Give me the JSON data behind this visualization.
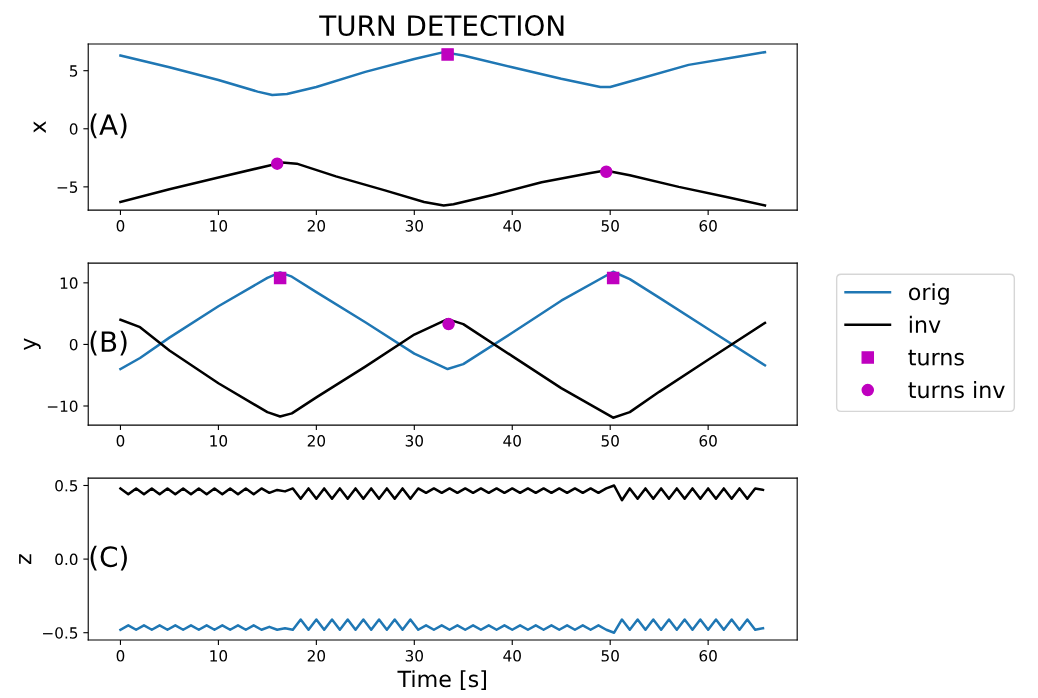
{
  "chart_data": [
    {
      "type": "line",
      "title": "TURN DETECTION",
      "ylabel": "x",
      "annotations": [
        "(A)"
      ],
      "xlim": [
        -3.29,
        69.09
      ],
      "xticks": [
        0,
        10,
        20,
        30,
        40,
        50,
        60
      ],
      "ylim": [
        -7.0,
        7.3
      ],
      "yticks": [
        -5,
        0,
        5
      ],
      "grid": false,
      "legend": false,
      "series": [
        {
          "color": "#1f77b4",
          "x": [
            0,
            5,
            10,
            14,
            15.5,
            17,
            20,
            25,
            30,
            33,
            35,
            40,
            45,
            49,
            50,
            53,
            58,
            63,
            65.8
          ],
          "values": [
            6.3,
            5.3,
            4.2,
            3.2,
            2.9,
            3.0,
            3.6,
            4.9,
            6.0,
            6.6,
            6.3,
            5.3,
            4.3,
            3.6,
            3.6,
            4.3,
            5.5,
            6.2,
            6.6
          ]
        },
        {
          "color": "#000000",
          "x": [
            0,
            5,
            10,
            15,
            16.5,
            18,
            22,
            27,
            31,
            33,
            34,
            38,
            43,
            48,
            49.5,
            52,
            57,
            62,
            65.8
          ],
          "values": [
            -6.3,
            -5.2,
            -4.2,
            -3.2,
            -2.9,
            -3.0,
            -4.1,
            -5.3,
            -6.3,
            -6.6,
            -6.5,
            -5.7,
            -4.6,
            -3.8,
            -3.6,
            -4.0,
            -5.0,
            -5.9,
            -6.6
          ]
        },
        {
          "type": "scatter",
          "marker": "square",
          "color": "#bf00bf",
          "x": [
            33.4
          ],
          "values": [
            6.4
          ]
        },
        {
          "type": "scatter",
          "marker": "circle",
          "color": "#bf00bf",
          "x": [
            16,
            49.6
          ],
          "values": [
            -3.0,
            -3.7
          ]
        }
      ]
    },
    {
      "type": "line",
      "ylabel": "y",
      "annotations": [
        "(B)"
      ],
      "xlim": [
        -3.29,
        69.09
      ],
      "xticks": [
        0,
        10,
        20,
        30,
        40,
        50,
        60
      ],
      "ylim": [
        -13.1,
        13.2
      ],
      "yticks": [
        -10,
        0,
        10
      ],
      "grid": false,
      "legend": "right",
      "series": [
        {
          "name": "orig",
          "color": "#1f77b4",
          "x": [
            0,
            2,
            5,
            10,
            15,
            16.3,
            17.5,
            20,
            25,
            30,
            33.4,
            35,
            40,
            45,
            50.3,
            52,
            55,
            60,
            65.8
          ],
          "values": [
            -4,
            -2.2,
            1.1,
            6.2,
            10.8,
            11.7,
            11.0,
            8.5,
            3.6,
            -1.5,
            -4.0,
            -3.2,
            1.9,
            7.1,
            11.8,
            10.6,
            7.6,
            2.5,
            -3.4
          ]
        },
        {
          "name": "inv",
          "color": "#000000",
          "x": [
            0,
            2,
            5,
            10,
            15,
            16.3,
            17.5,
            20,
            25,
            30,
            33.4,
            35,
            40,
            45,
            50.3,
            52,
            55,
            60,
            65.8
          ],
          "values": [
            4,
            2.8,
            -1.0,
            -6.3,
            -11.0,
            -11.7,
            -11.2,
            -8.6,
            -3.6,
            1.6,
            4.1,
            3.3,
            -1.9,
            -7.1,
            -11.9,
            -11.0,
            -7.7,
            -2.5,
            3.5
          ]
        },
        {
          "type": "scatter",
          "name": "turns",
          "marker": "square",
          "color": "#bf00bf",
          "x": [
            16.3,
            50.3
          ],
          "values": [
            10.8,
            10.8
          ]
        },
        {
          "type": "scatter",
          "name": "turns inv",
          "marker": "circle",
          "color": "#bf00bf",
          "x": [
            33.5
          ],
          "values": [
            3.3
          ]
        }
      ]
    },
    {
      "type": "line",
      "ylabel": "z",
      "xlabel": "Time [s]",
      "annotations": [
        "(C)"
      ],
      "xlim": [
        -3.29,
        69.09
      ],
      "xticks": [
        0,
        10,
        20,
        30,
        40,
        50,
        60
      ],
      "ylim": [
        -0.55,
        0.55
      ],
      "yticks": [
        {
          "value": -0.5,
          "label": "−0.5"
        },
        {
          "value": 0,
          "label": "0.0"
        },
        {
          "value": 0.5,
          "label": "0.5"
        }
      ],
      "grid": false,
      "legend": false,
      "series": [
        {
          "color": "#000000",
          "x": [
            0,
            0.8,
            1.6,
            2.4,
            3.2,
            4,
            4.8,
            5.6,
            6.4,
            7.2,
            8,
            8.8,
            9.6,
            10.4,
            11.2,
            12,
            12.8,
            13.6,
            14.4,
            15.2,
            16,
            16.8,
            17.6,
            18.4,
            19.2,
            20,
            20.8,
            21.6,
            22.4,
            23.2,
            24,
            24.8,
            25.6,
            26.4,
            27.2,
            28,
            28.8,
            29.6,
            30.4,
            31.2,
            32,
            32.8,
            33.6,
            34.4,
            35.2,
            36,
            36.8,
            37.6,
            38.4,
            39.2,
            40,
            40.8,
            41.6,
            42.4,
            43.2,
            44,
            44.8,
            45.6,
            46.4,
            47.2,
            48,
            48.8,
            49.6,
            50.4,
            51.2,
            52,
            52.8,
            53.6,
            54.4,
            55.2,
            56,
            56.8,
            57.6,
            58.4,
            59.2,
            60,
            60.8,
            61.6,
            62.4,
            63.2,
            64,
            64.8,
            65.6
          ],
          "values": [
            0.48,
            0.44,
            0.48,
            0.44,
            0.48,
            0.44,
            0.48,
            0.44,
            0.48,
            0.44,
            0.48,
            0.44,
            0.48,
            0.44,
            0.48,
            0.44,
            0.48,
            0.44,
            0.48,
            0.45,
            0.47,
            0.46,
            0.48,
            0.41,
            0.48,
            0.41,
            0.48,
            0.41,
            0.48,
            0.41,
            0.48,
            0.41,
            0.48,
            0.41,
            0.48,
            0.41,
            0.48,
            0.41,
            0.48,
            0.45,
            0.48,
            0.45,
            0.48,
            0.45,
            0.48,
            0.45,
            0.48,
            0.45,
            0.48,
            0.45,
            0.48,
            0.45,
            0.48,
            0.45,
            0.48,
            0.45,
            0.48,
            0.45,
            0.48,
            0.45,
            0.48,
            0.45,
            0.48,
            0.5,
            0.4,
            0.48,
            0.41,
            0.48,
            0.41,
            0.48,
            0.41,
            0.48,
            0.41,
            0.48,
            0.41,
            0.48,
            0.41,
            0.48,
            0.41,
            0.48,
            0.41,
            0.48,
            0.47
          ]
        },
        {
          "color": "#1f77b4",
          "x": [
            0,
            0.8,
            1.6,
            2.4,
            3.2,
            4,
            4.8,
            5.6,
            6.4,
            7.2,
            8,
            8.8,
            9.6,
            10.4,
            11.2,
            12,
            12.8,
            13.6,
            14.4,
            15.2,
            16,
            16.8,
            17.6,
            18.4,
            19.2,
            20,
            20.8,
            21.6,
            22.4,
            23.2,
            24,
            24.8,
            25.6,
            26.4,
            27.2,
            28,
            28.8,
            29.6,
            30.4,
            31.2,
            32,
            32.8,
            33.6,
            34.4,
            35.2,
            36,
            36.8,
            37.6,
            38.4,
            39.2,
            40,
            40.8,
            41.6,
            42.4,
            43.2,
            44,
            44.8,
            45.6,
            46.4,
            47.2,
            48,
            48.8,
            49.6,
            50.4,
            51.2,
            52,
            52.8,
            53.6,
            54.4,
            55.2,
            56,
            56.8,
            57.6,
            58.4,
            59.2,
            60,
            60.8,
            61.6,
            62.4,
            63.2,
            64,
            64.8,
            65.6
          ],
          "values": [
            -0.48,
            -0.45,
            -0.48,
            -0.45,
            -0.48,
            -0.45,
            -0.48,
            -0.45,
            -0.48,
            -0.45,
            -0.48,
            -0.45,
            -0.48,
            -0.45,
            -0.48,
            -0.45,
            -0.48,
            -0.45,
            -0.48,
            -0.46,
            -0.48,
            -0.47,
            -0.48,
            -0.41,
            -0.48,
            -0.41,
            -0.48,
            -0.41,
            -0.48,
            -0.41,
            -0.48,
            -0.41,
            -0.48,
            -0.41,
            -0.48,
            -0.41,
            -0.48,
            -0.41,
            -0.48,
            -0.45,
            -0.48,
            -0.45,
            -0.48,
            -0.45,
            -0.48,
            -0.45,
            -0.48,
            -0.45,
            -0.48,
            -0.45,
            -0.48,
            -0.45,
            -0.48,
            -0.45,
            -0.48,
            -0.45,
            -0.48,
            -0.45,
            -0.48,
            -0.45,
            -0.48,
            -0.45,
            -0.48,
            -0.5,
            -0.41,
            -0.48,
            -0.41,
            -0.48,
            -0.41,
            -0.48,
            -0.41,
            -0.48,
            -0.41,
            -0.48,
            -0.41,
            -0.48,
            -0.41,
            -0.48,
            -0.41,
            -0.48,
            -0.41,
            -0.48,
            -0.47
          ]
        }
      ]
    }
  ]
}
